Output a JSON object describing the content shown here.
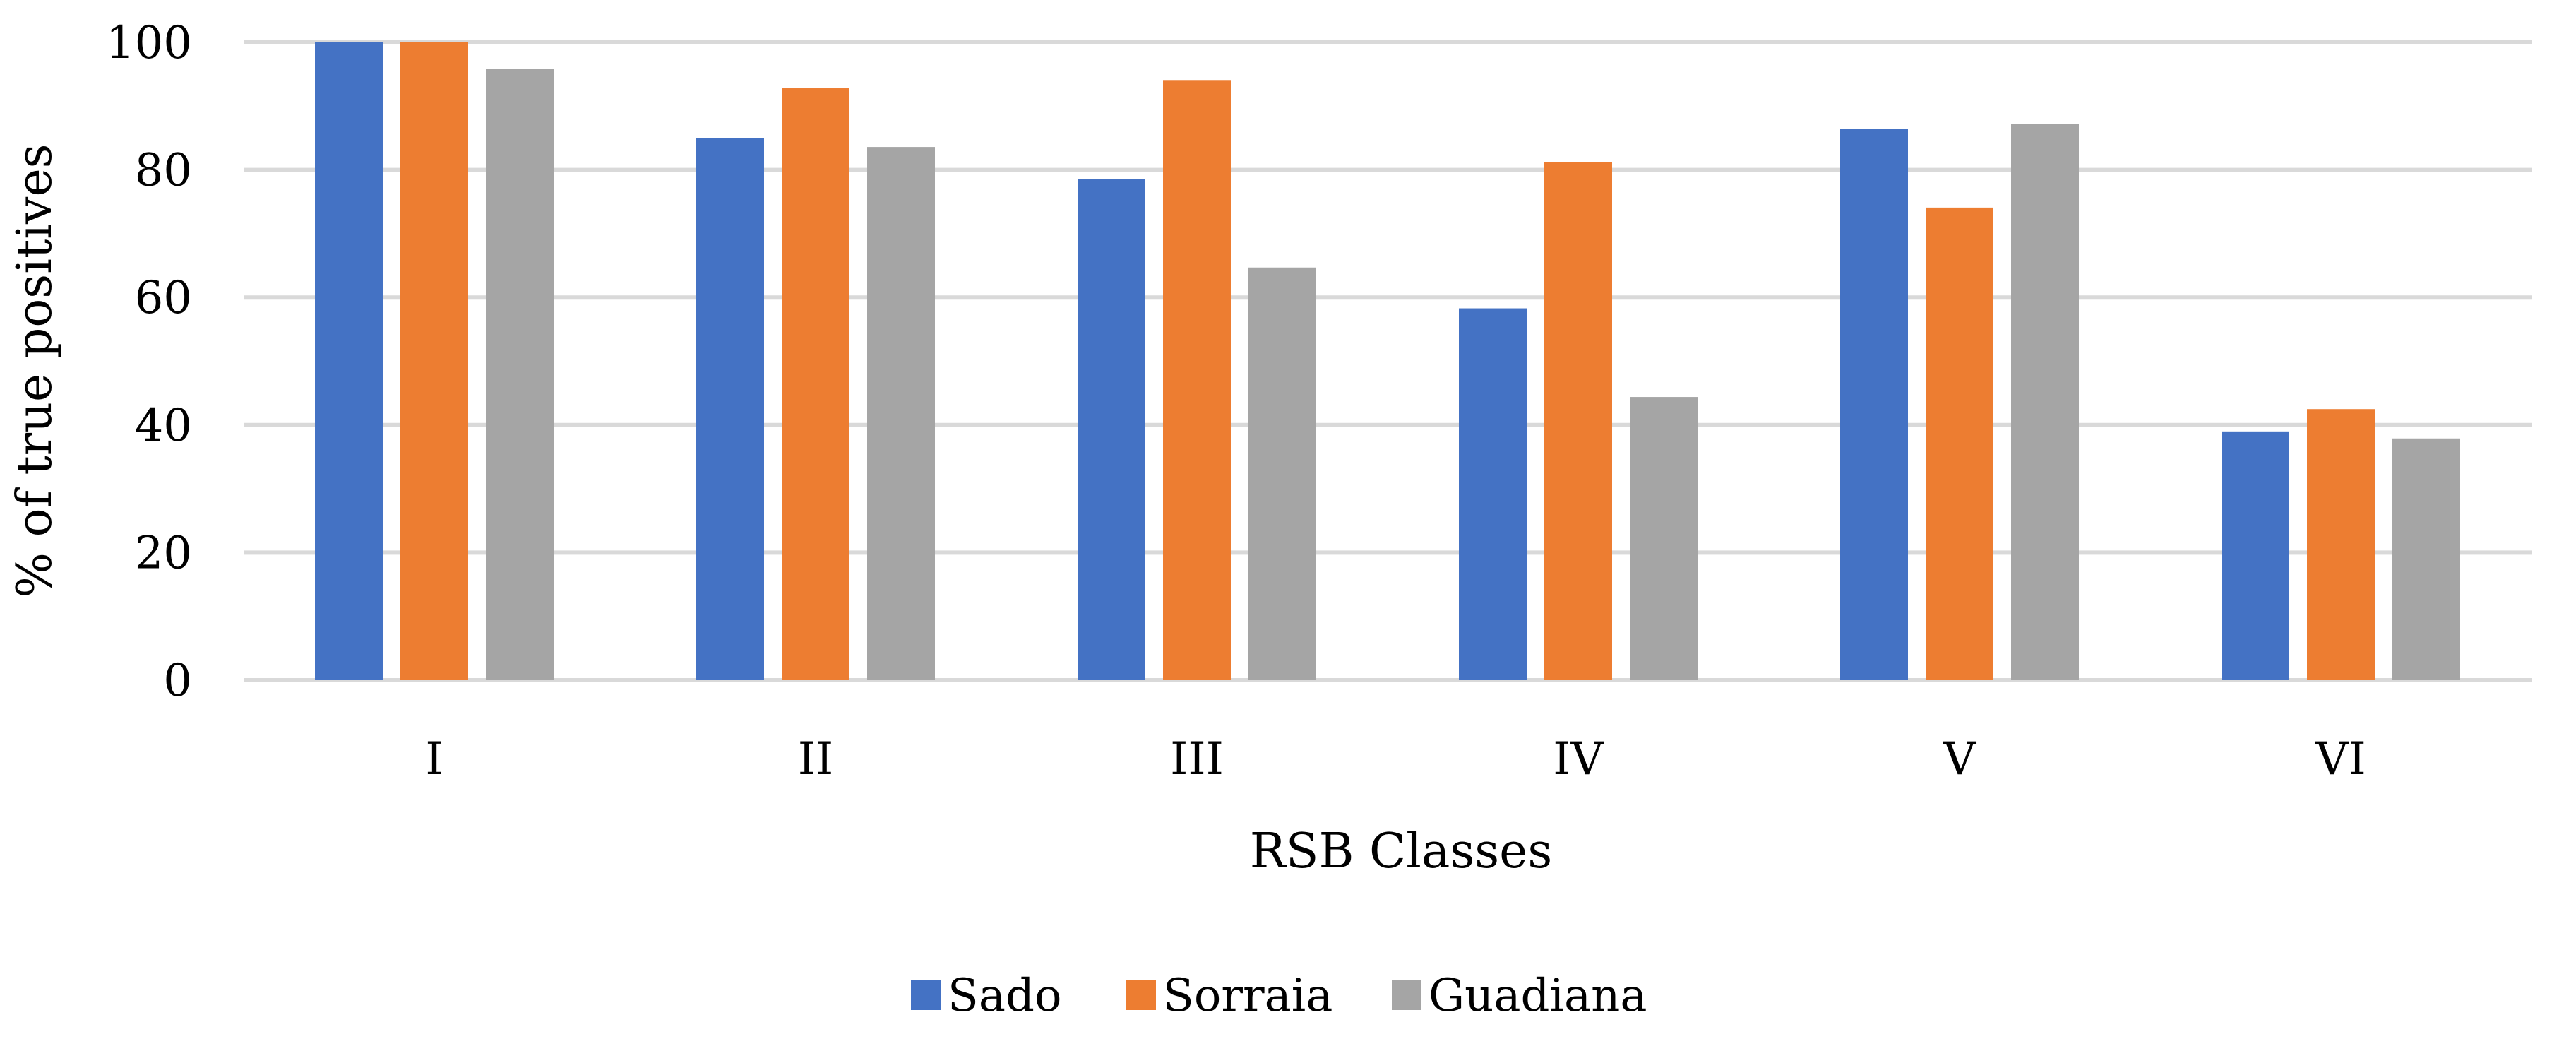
{
  "chart_data": {
    "type": "bar",
    "title": "",
    "xlabel": "RSB Classes",
    "ylabel": "% of true positives",
    "ylim": [
      0,
      100
    ],
    "yticks": [
      0,
      20,
      40,
      60,
      80,
      100
    ],
    "grid": true,
    "legend_position": "bottom",
    "categories": [
      "I",
      "II",
      "III",
      "IV",
      "V",
      "VI"
    ],
    "series": [
      {
        "name": "Sado",
        "color": "#4472C4",
        "values": [
          100,
          85,
          78.6,
          58.3,
          86.4,
          39
        ]
      },
      {
        "name": "Sorraia",
        "color": "#ED7D31",
        "values": [
          100,
          92.8,
          94.1,
          81.2,
          74.1,
          42.5
        ]
      },
      {
        "name": "Guadiana",
        "color": "#A5A5A5",
        "values": [
          95.9,
          83.6,
          64.7,
          44.4,
          87.2,
          37.9
        ]
      }
    ]
  }
}
